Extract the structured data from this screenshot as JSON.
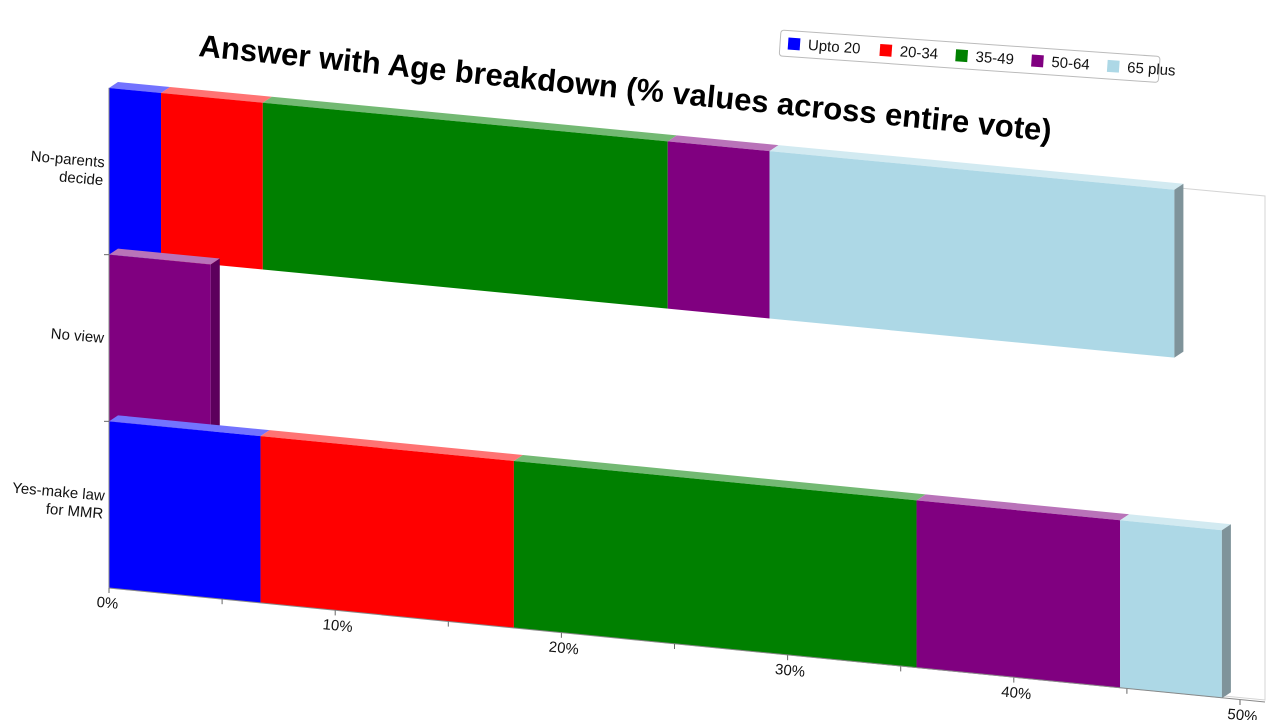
{
  "chart_data": {
    "type": "bar",
    "orientation": "horizontal",
    "stacked": true,
    "title": "Answer with Age breakdown (% values across entire vote)",
    "xlabel": "",
    "ylabel": "",
    "xlim": [
      0,
      50
    ],
    "x_ticks": [
      "0%",
      "10%",
      "20%",
      "30%",
      "40%",
      "50%"
    ],
    "categories": [
      "No-parents decide",
      "No view",
      "Yes-make law for MMR"
    ],
    "category_lines": [
      [
        "No-parents",
        "decide"
      ],
      [
        "No view"
      ],
      [
        "Yes-make law",
        "for MMR"
      ]
    ],
    "series": [
      {
        "name": "Upto 20",
        "color": "#0000ff",
        "values": [
          2.3,
          0,
          6.7
        ]
      },
      {
        "name": "20-34",
        "color": "#ff0000",
        "values": [
          4.5,
          0,
          11.2
        ]
      },
      {
        "name": "35-49",
        "color": "#008000",
        "values": [
          17.9,
          0,
          17.8
        ]
      },
      {
        "name": "50-64",
        "color": "#800080",
        "values": [
          4.5,
          4.5,
          9.0
        ]
      },
      {
        "name": "65 plus",
        "color": "#add8e6",
        "values": [
          17.9,
          0,
          4.5
        ]
      }
    ],
    "legend_position": "top-right",
    "grid": false
  }
}
